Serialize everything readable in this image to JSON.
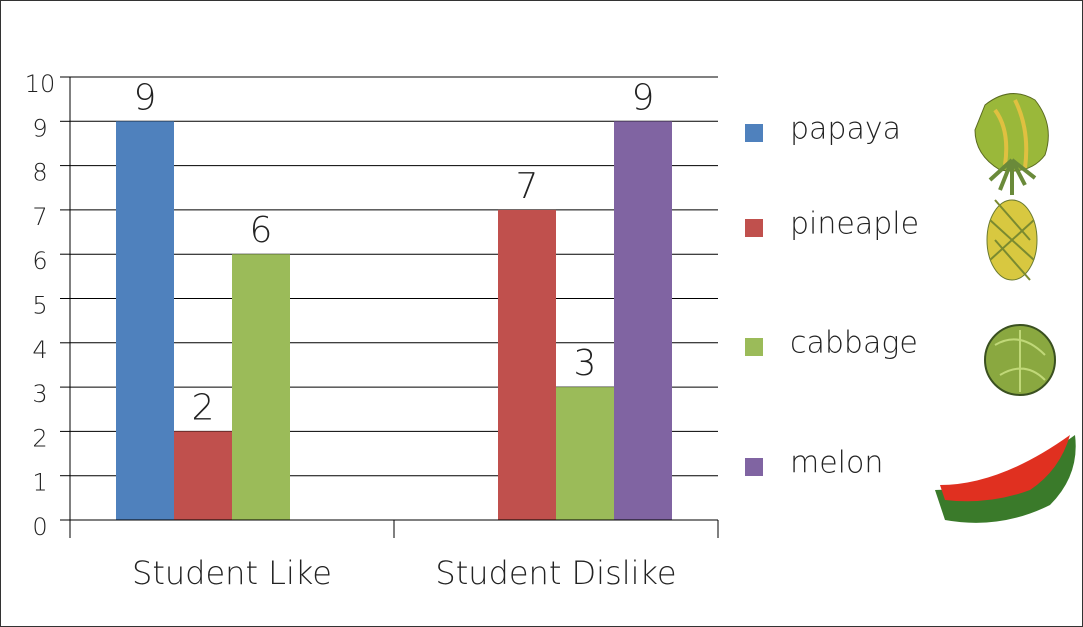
{
  "chart_data": {
    "type": "bar",
    "categories": [
      "Student Like",
      "Student Dislike"
    ],
    "series": [
      {
        "name": "papaya",
        "color": "#4f81bd",
        "values": [
          9,
          null
        ]
      },
      {
        "name": "pineaple",
        "color": "#c0504d",
        "values": [
          2,
          7
        ]
      },
      {
        "name": "cabbage",
        "color": "#9bbb59",
        "values": [
          6,
          3
        ]
      },
      {
        "name": "melon",
        "color": "#8064a2",
        "values": [
          null,
          9
        ]
      }
    ],
    "ylim": [
      0,
      10
    ],
    "yticks": [
      0,
      1,
      2,
      3,
      4,
      5,
      6,
      7,
      8,
      9,
      10
    ],
    "grid": true,
    "legend": "right"
  }
}
